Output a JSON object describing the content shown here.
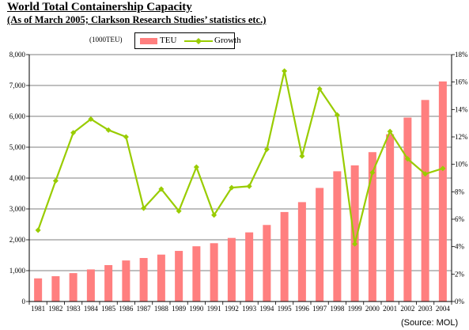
{
  "header": {
    "title": "World Total Containership Capacity",
    "subtitle": "(As of March 2005; Clarkson Research Studies’ statistics etc.)",
    "unit_note": "(1000TEU)",
    "source": "(Source: MOL)"
  },
  "colors": {
    "teu_bar": "#ff7f7f",
    "growth_line": "#99cc00"
  },
  "chart_data": {
    "type": "bar",
    "categories": [
      "1981",
      "1982",
      "1983",
      "1984",
      "1985",
      "1986",
      "1987",
      "1988",
      "1989",
      "1990",
      "1991",
      "1992",
      "1993",
      "1994",
      "1995",
      "1996",
      "1997",
      "1998",
      "1999",
      "2000",
      "2001",
      "2002",
      "2003",
      "2004"
    ],
    "series": [
      {
        "name": "TEU",
        "type": "bar",
        "axis": "left",
        "values": [
          750,
          820,
          920,
          1040,
          1180,
          1330,
          1410,
          1520,
          1640,
          1790,
          1890,
          2060,
          2240,
          2480,
          2900,
          3220,
          3680,
          4220,
          4410,
          4840,
          5420,
          5960,
          6530,
          7130
        ]
      },
      {
        "name": "Growth",
        "type": "line",
        "axis": "right",
        "unit": "%",
        "values": [
          5.2,
          8.8,
          12.3,
          13.3,
          12.5,
          12.0,
          6.8,
          8.2,
          6.6,
          9.8,
          6.3,
          8.3,
          8.4,
          11.1,
          16.8,
          10.6,
          15.5,
          13.6,
          4.2,
          9.4,
          12.4,
          10.4,
          9.3,
          9.7
        ]
      }
    ],
    "y_left": {
      "min": 0,
      "max": 8000,
      "step": 1000,
      "tick_labels": [
        "0",
        "1,000",
        "2,000",
        "3,000",
        "4,000",
        "5,000",
        "6,000",
        "7,000",
        "8,000"
      ]
    },
    "y_right": {
      "min": 0,
      "max": 18,
      "step": 2,
      "tick_labels": [
        "0%",
        "2%",
        "4%",
        "6%",
        "8%",
        "10%",
        "12%",
        "14%",
        "16%",
        "18%"
      ]
    },
    "grid": "horizontal",
    "legend": {
      "placement": "top-left",
      "items": [
        "TEU",
        "Growth"
      ]
    }
  }
}
